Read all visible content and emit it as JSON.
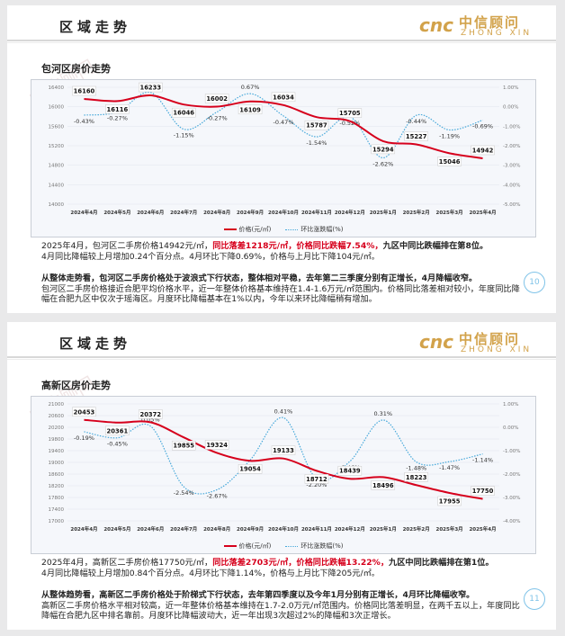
{
  "slides": [
    {
      "header": "区域走势",
      "logo": {
        "mark": "cnc",
        "cn": "中信顾问",
        "en": "ZHONG XIN"
      },
      "watermark": "中信顾问",
      "subtitle": "包河区房价走势",
      "page_number": "10",
      "paragraph1": {
        "a": "2025年4月，包河区二手房价格14942元/㎡，",
        "b": "同比落差1218元/㎡，价格同比跌幅7.54%，",
        "c": "九区中同比跌幅排在第8位。",
        "d": "4月同比降幅较上月增加0.24个百分点。4月环比下降0.69%，价格与上月比下降104元/㎡。"
      },
      "paragraph2": {
        "a": "从整体走势看，包河区二手房价格处于波浪式下行状态，整体相对平稳，去年第二三季度分别有正增长，4月降幅收窄。",
        "b": "包河区二手房价格接近合肥平均价格水平，近一年整体价格基本维持在1.4-1.6万元/㎡范围内。价格同比落差相对较小，年度同比降幅在合肥九区中仅次于瑶海区。月度环比降幅基本在1%以内，今年以来环比降幅稍有增加。"
      },
      "chart_data": {
        "type": "line",
        "categories": [
          "2024年4月",
          "2024年5月",
          "2024年6月",
          "2024年7月",
          "2024年8月",
          "2024年9月",
          "2024年10月",
          "2024年11月",
          "2024年12月",
          "2025年1月",
          "2025年2月",
          "2025年3月",
          "2025年4月"
        ],
        "series": [
          {
            "name": "价格(元/㎡)",
            "axis": "left",
            "values": [
              16160,
              16116,
              16233,
              16046,
              16002,
              16109,
              16034,
              15787,
              15705,
              15294,
              15227,
              15046,
              14942
            ],
            "labels": [
              "16160",
              "16116",
              "16233",
              "16046",
              "16002",
              "16109",
              "16034",
              "15787",
              "15705",
              "15294",
              "15227",
              "15046",
              "14942"
            ]
          },
          {
            "name": "环比涨跌幅(%)",
            "axis": "right",
            "values": [
              -0.43,
              -0.27,
              0.73,
              -1.15,
              -0.27,
              0.67,
              -0.47,
              -1.54,
              -0.52,
              -2.62,
              -0.44,
              -1.19,
              -0.69
            ],
            "labels": [
              "-0.43%",
              "-0.27%",
              "0.73%",
              "-1.15%",
              "-0.27%",
              "0.67%",
              "-0.47%",
              "-1.54%",
              "-0.52%",
              "-2.62%",
              "-0.44%",
              "-1.19%",
              "-0.69%"
            ]
          }
        ],
        "ylim": [
          14000,
          16400
        ],
        "yticks": [
          "14000",
          "14400",
          "14800",
          "15200",
          "15600",
          "16000",
          "16400"
        ],
        "y2lim": [
          -5.0,
          1.0
        ],
        "y2ticks": [
          "-5.00%",
          "-4.00%",
          "-3.00%",
          "-2.00%",
          "-1.00%",
          "0.00%",
          "1.00%"
        ],
        "legend": "bottom-center",
        "colors": {
          "price": "#d6001c",
          "change": "#46a8da"
        }
      }
    },
    {
      "header": "区域走势",
      "logo": {
        "mark": "cnc",
        "cn": "中信顾问",
        "en": "ZHONG XIN"
      },
      "watermark": "中信顾问",
      "subtitle": "高新区房价走势",
      "page_number": "11",
      "paragraph1": {
        "a": "2025年4月，高新区二手房价格17750元/㎡，",
        "b": "同比落差2703元/㎡，价格同比跌幅13.22%，",
        "c": "九区中同比跌幅排在第1位。",
        "d": "4月同比降幅较上月增加0.84个百分点。4月环比下降1.14%，价格与上月比下降205元/㎡。"
      },
      "paragraph2": {
        "a": "从整体趋势看，高新区二手房价格处于阶梯式下行状态，去年第四季度以及今年1月分别有正增长，4月环比降幅收窄。",
        "b": "高新区二手房价格水平相对较高，近一年整体价格基本维持在1.7-2.0万元/㎡范围内。价格同比落差明显，在两千五以上，年度同比降幅在合肥九区中排名靠前。月度环比降幅波动大，近一年出现3次超过2%的降幅和3次正增长。"
      },
      "chart_data": {
        "type": "line",
        "categories": [
          "2024年4月",
          "2024年5月",
          "2024年6月",
          "2024年7月",
          "2024年8月",
          "2024年9月",
          "2024年10月",
          "2024年11月",
          "2024年12月",
          "2025年1月",
          "2025年2月",
          "2025年3月",
          "2025年4月"
        ],
        "series": [
          {
            "name": "价格(元/㎡)",
            "axis": "left",
            "values": [
              20453,
              20361,
              20372,
              19855,
              19324,
              19054,
              19133,
              18712,
              18439,
              18496,
              18223,
              17955,
              17750
            ],
            "labels": [
              "20453",
              "20361",
              "20372",
              "19855",
              "19324",
              "19054",
              "19133",
              "18712",
              "18439",
              "18496",
              "18223",
              "17955",
              "17750"
            ]
          },
          {
            "name": "环比涨跌幅(%)",
            "axis": "right",
            "values": [
              -0.19,
              -0.45,
              0.05,
              -2.54,
              -2.67,
              -1.4,
              0.41,
              -2.2,
              -1.46,
              0.31,
              -1.48,
              -1.47,
              -1.14
            ],
            "labels": [
              "-0.19%",
              "-0.45%",
              "0.05%",
              "-2.54%",
              "-2.67%",
              "-1.40%",
              "0.41%",
              "-2.20%",
              "-1.46%",
              "0.31%",
              "-1.48%",
              "-1.47%",
              "-1.14%"
            ]
          }
        ],
        "ylim": [
          17000,
          21000
        ],
        "yticks": [
          "17000",
          "17400",
          "17800",
          "18200",
          "18600",
          "19000",
          "19400",
          "19800",
          "20200",
          "20600",
          "21000"
        ],
        "y2lim": [
          -4.0,
          1.0
        ],
        "y2ticks": [
          "-4.00%",
          "-3.00%",
          "-2.00%",
          "-1.00%",
          "0.00%",
          "1.00%"
        ],
        "legend": "bottom-center",
        "colors": {
          "price": "#d6001c",
          "change": "#46a8da"
        }
      }
    }
  ]
}
